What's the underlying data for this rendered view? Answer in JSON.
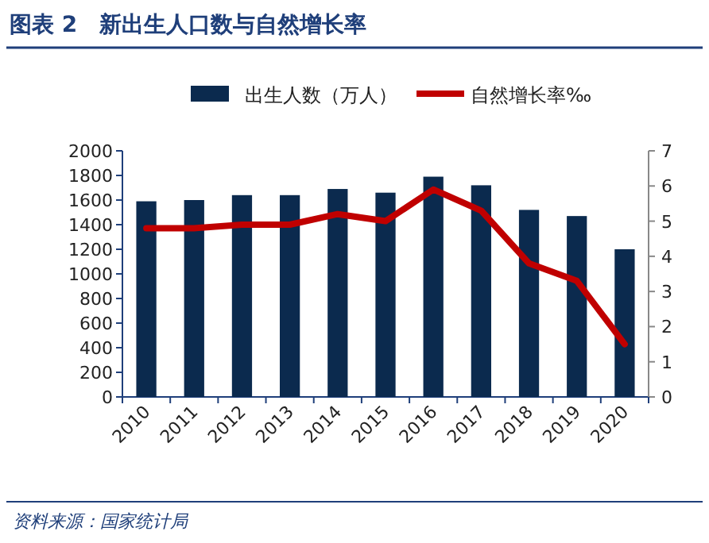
{
  "chart_data": {
    "type": "bar",
    "title": "图表 2　新出生人口数与自然增长率",
    "categories": [
      "2010",
      "2011",
      "2012",
      "2013",
      "2014",
      "2015",
      "2016",
      "2017",
      "2018",
      "2019",
      "2020"
    ],
    "series": [
      {
        "name": "出生人数（万人）",
        "color": "#0b2a4e",
        "values": [
          1590,
          1600,
          1640,
          1640,
          1690,
          1660,
          1790,
          1720,
          1520,
          1470,
          1200
        ]
      },
      {
        "name": "自然增长率‰",
        "type": "line",
        "axis": "y2",
        "color": "#c00000",
        "marker": "none",
        "line_style": "solid",
        "values": [
          4.8,
          4.8,
          4.9,
          4.9,
          5.2,
          5.0,
          5.9,
          5.3,
          3.8,
          3.3,
          1.5
        ]
      }
    ],
    "ylim": [
      0,
      2000
    ],
    "yticks": [
      0,
      200,
      400,
      600,
      800,
      1000,
      1200,
      1400,
      1600,
      1800,
      2000
    ],
    "y2lim": [
      0,
      7
    ],
    "y2ticks": [
      0,
      1,
      2,
      3,
      4,
      5,
      6,
      7
    ],
    "legend": "top",
    "grid": false,
    "annotations": [
      "资料来源：国家统计局"
    ]
  }
}
